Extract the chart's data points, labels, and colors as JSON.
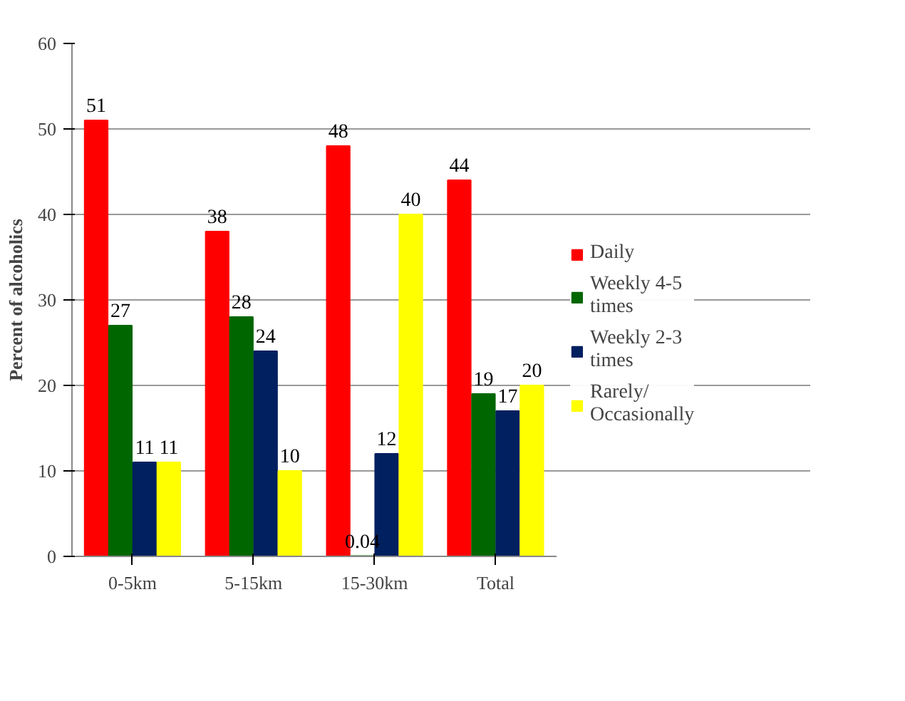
{
  "chart_data": {
    "type": "bar",
    "ylabel": "Percent of alcoholics",
    "categories": [
      "0-5km",
      "5-15km",
      "15-30km",
      "Total"
    ],
    "series": [
      {
        "name": "Daily",
        "color": "#ff0000",
        "values": [
          51,
          38,
          48,
          44
        ]
      },
      {
        "name": "Weekly 4-5 times",
        "color": "#006600",
        "values": [
          27,
          28,
          0.04,
          19
        ]
      },
      {
        "name": "Weekly 2-3 times",
        "color": "#002060",
        "values": [
          11,
          24,
          12,
          17
        ]
      },
      {
        "name": "Rarely/ Occasionally",
        "color": "#ffff00",
        "values": [
          11,
          10,
          40,
          20
        ]
      }
    ],
    "ylim": [
      0,
      60
    ],
    "yticks": [
      0,
      10,
      20,
      30,
      40,
      50,
      60
    ],
    "grid": "y",
    "legend": "right",
    "data_labels": true
  }
}
